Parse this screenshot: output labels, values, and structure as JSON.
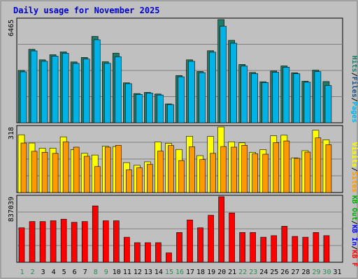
{
  "title": "Daily usage for November 2025",
  "colors": {
    "background": "#c0c0c0",
    "title": "#0000cc",
    "grid": "#808080",
    "pages": "#00b3e6",
    "files": "#2e8b57",
    "hits": "#1f7a66",
    "visits": "#ffff00",
    "sites": "#ff9900",
    "kb_out": "#00aa00",
    "kb_in": "#0000ff",
    "kb_f": "#ff0000",
    "weekend_label": "#2e8b57",
    "weekday_label": "#000000"
  },
  "chart_data": [
    {
      "type": "bar",
      "panel": "hits-files-pages",
      "ylabel_max": "6465",
      "legend": [
        {
          "text": "Pages",
          "color": "#00b3e6"
        },
        {
          "text": "Files",
          "color": "#1f4e79"
        },
        {
          "text": "Hits",
          "color": "#1f7a66"
        }
      ],
      "ylim": [
        0,
        6465
      ],
      "categories": [
        "1",
        "2",
        "3",
        "4",
        "5",
        "6",
        "7",
        "8",
        "9",
        "10",
        "11",
        "12",
        "13",
        "14",
        "15",
        "16",
        "17",
        "18",
        "19",
        "20",
        "21",
        "22",
        "23",
        "24",
        "25",
        "26",
        "27",
        "28",
        "29",
        "30",
        "31"
      ],
      "series": [
        {
          "name": "Hits",
          "values": [
            3280,
            4600,
            3940,
            4260,
            4440,
            3810,
            4090,
            5410,
            3820,
            4360,
            2500,
            1830,
            1900,
            1800,
            1180,
            2960,
            3940,
            3210,
            4510,
            6465,
            5160,
            3650,
            3150,
            2570,
            3240,
            3560,
            3130,
            2600,
            3300,
            2580,
            0
          ]
        },
        {
          "name": "Files",
          "values": [
            3280,
            4600,
            3940,
            4260,
            4440,
            3810,
            4090,
            5410,
            3820,
            4360,
            2500,
            1830,
            1900,
            1800,
            1180,
            2960,
            3940,
            3210,
            4510,
            6465,
            5160,
            3650,
            3150,
            2570,
            3240,
            3560,
            3130,
            2600,
            3300,
            2580,
            0
          ]
        },
        {
          "name": "Pages",
          "values": [
            3190,
            4500,
            3850,
            4170,
            4350,
            3720,
            3990,
            5200,
            3720,
            4140,
            2450,
            1780,
            1860,
            1740,
            1140,
            2880,
            3850,
            3140,
            4420,
            6040,
            4980,
            3550,
            3080,
            2520,
            3160,
            3480,
            3070,
            2540,
            3200,
            2330,
            0
          ]
        }
      ]
    },
    {
      "type": "bar",
      "panel": "visits-sites",
      "ylabel_max": "318",
      "legend": [
        {
          "text": "Sites",
          "color": "#ff9900"
        },
        {
          "text": "Visits",
          "color": "#ffff00"
        }
      ],
      "ylim": [
        0,
        318
      ],
      "categories": [
        "1",
        "2",
        "3",
        "4",
        "5",
        "6",
        "7",
        "8",
        "9",
        "10",
        "11",
        "12",
        "13",
        "14",
        "15",
        "16",
        "17",
        "18",
        "19",
        "20",
        "21",
        "22",
        "23",
        "24",
        "25",
        "26",
        "27",
        "28",
        "29",
        "30",
        "31"
      ],
      "series": [
        {
          "name": "Visits",
          "values": [
            280,
            240,
            215,
            215,
            270,
            208,
            190,
            182,
            225,
            223,
            145,
            132,
            149,
            245,
            239,
            209,
            273,
            179,
            272,
            318,
            246,
            241,
            195,
            208,
            275,
            278,
            168,
            203,
            302,
            256,
            0
          ]
        },
        {
          "name": "Sites",
          "values": [
            240,
            200,
            195,
            190,
            246,
            220,
            176,
            126,
            220,
            229,
            110,
            120,
            137,
            201,
            228,
            155,
            222,
            160,
            190,
            223,
            220,
            229,
            188,
            186,
            242,
            250,
            166,
            196,
            265,
            232,
            0
          ]
        }
      ]
    },
    {
      "type": "bar",
      "panel": "kb",
      "ylabel_max": "837039",
      "legend": [
        {
          "text": "KB F",
          "color": "#ff0000"
        },
        {
          "text": "KB In",
          "color": "#0000ff"
        },
        {
          "text": "KB Out",
          "color": "#00aa00"
        }
      ],
      "ylim": [
        0,
        837039
      ],
      "categories": [
        "1",
        "2",
        "3",
        "4",
        "5",
        "6",
        "7",
        "8",
        "9",
        "10",
        "11",
        "12",
        "13",
        "14",
        "15",
        "16",
        "17",
        "18",
        "19",
        "20",
        "21",
        "22",
        "23",
        "24",
        "25",
        "26",
        "27",
        "28",
        "29",
        "30",
        "31"
      ],
      "series": [
        {
          "name": "KB F",
          "values": [
            440000,
            520000,
            520000,
            530000,
            550000,
            510000,
            520000,
            720000,
            530000,
            530000,
            320000,
            250000,
            250000,
            250000,
            120000,
            380000,
            540000,
            440000,
            600000,
            837039,
            630000,
            380000,
            380000,
            320000,
            340000,
            460000,
            330000,
            320000,
            380000,
            340000,
            0
          ]
        }
      ]
    }
  ],
  "x_labels": [
    {
      "text": "1",
      "weekend": true
    },
    {
      "text": "2",
      "weekend": true
    },
    {
      "text": "3",
      "weekend": false
    },
    {
      "text": "4",
      "weekend": false
    },
    {
      "text": "5",
      "weekend": false
    },
    {
      "text": "6",
      "weekend": false
    },
    {
      "text": "7",
      "weekend": false
    },
    {
      "text": "8",
      "weekend": true
    },
    {
      "text": "9",
      "weekend": true
    },
    {
      "text": "10",
      "weekend": false
    },
    {
      "text": "11",
      "weekend": false
    },
    {
      "text": "12",
      "weekend": false
    },
    {
      "text": "13",
      "weekend": false
    },
    {
      "text": "14",
      "weekend": false
    },
    {
      "text": "15",
      "weekend": true
    },
    {
      "text": "16",
      "weekend": true
    },
    {
      "text": "17",
      "weekend": false
    },
    {
      "text": "18",
      "weekend": false
    },
    {
      "text": "19",
      "weekend": false
    },
    {
      "text": "20",
      "weekend": false
    },
    {
      "text": "21",
      "weekend": false
    },
    {
      "text": "22",
      "weekend": true
    },
    {
      "text": "23",
      "weekend": true
    },
    {
      "text": "24",
      "weekend": false
    },
    {
      "text": "25",
      "weekend": false
    },
    {
      "text": "26",
      "weekend": false
    },
    {
      "text": "27",
      "weekend": false
    },
    {
      "text": "28",
      "weekend": false
    },
    {
      "text": "29",
      "weekend": true
    },
    {
      "text": "30",
      "weekend": true
    },
    {
      "text": "31",
      "weekend": false
    }
  ]
}
